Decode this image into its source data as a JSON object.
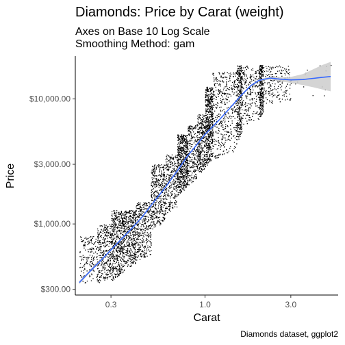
{
  "chart_data": {
    "type": "scatter",
    "title": "Diamonds: Price by Carat (weight)",
    "subtitle_lines": [
      "Axes on Base 10 Log Scale",
      "Smoothing Method: gam"
    ],
    "xlabel": "Carat",
    "ylabel": "Price",
    "caption": "Diamonds dataset, ggplot2",
    "x_scale": "log10",
    "y_scale": "log10",
    "xlim": [
      0.19,
      5.5
    ],
    "ylim": [
      270,
      22000
    ],
    "x_ticks": [
      {
        "value": 0.3,
        "label": "0.3"
      },
      {
        "value": 1.0,
        "label": "1.0"
      },
      {
        "value": 3.0,
        "label": "3.0"
      }
    ],
    "y_ticks": [
      {
        "value": 300,
        "label": "$300.00"
      },
      {
        "value": 1000,
        "label": "$1,000.00"
      },
      {
        "value": 3000,
        "label": "$3,000.00"
      },
      {
        "value": 10000,
        "label": "$10,000.00"
      }
    ],
    "grid": false,
    "point_color": "#000000",
    "smooth_color": "#3366FF",
    "ribbon_color": "#CCCCCC",
    "smooth": [
      {
        "x": 0.2,
        "y": 340,
        "lo": 330,
        "hi": 350
      },
      {
        "x": 0.23,
        "y": 420,
        "lo": 410,
        "hi": 430
      },
      {
        "x": 0.26,
        "y": 500,
        "lo": 490,
        "hi": 510
      },
      {
        "x": 0.3,
        "y": 620,
        "lo": 610,
        "hi": 630
      },
      {
        "x": 0.35,
        "y": 780,
        "lo": 770,
        "hi": 790
      },
      {
        "x": 0.4,
        "y": 950,
        "lo": 940,
        "hi": 960
      },
      {
        "x": 0.45,
        "y": 1150,
        "lo": 1140,
        "hi": 1160
      },
      {
        "x": 0.5,
        "y": 1400,
        "lo": 1390,
        "hi": 1410
      },
      {
        "x": 0.6,
        "y": 1950,
        "lo": 1930,
        "hi": 1970
      },
      {
        "x": 0.7,
        "y": 2650,
        "lo": 2630,
        "hi": 2670
      },
      {
        "x": 0.8,
        "y": 3500,
        "lo": 3470,
        "hi": 3530
      },
      {
        "x": 0.9,
        "y": 4300,
        "lo": 4260,
        "hi": 4340
      },
      {
        "x": 1.0,
        "y": 5200,
        "lo": 5150,
        "hi": 5250
      },
      {
        "x": 1.2,
        "y": 6800,
        "lo": 6730,
        "hi": 6870
      },
      {
        "x": 1.4,
        "y": 8700,
        "lo": 8600,
        "hi": 8800
      },
      {
        "x": 1.6,
        "y": 10800,
        "lo": 10650,
        "hi": 10950
      },
      {
        "x": 1.8,
        "y": 12800,
        "lo": 12600,
        "hi": 13000
      },
      {
        "x": 2.0,
        "y": 14100,
        "lo": 13850,
        "hi": 14350
      },
      {
        "x": 2.3,
        "y": 14700,
        "lo": 14300,
        "hi": 15100
      },
      {
        "x": 2.6,
        "y": 14400,
        "lo": 13900,
        "hi": 14900
      },
      {
        "x": 3.0,
        "y": 14200,
        "lo": 13400,
        "hi": 15000
      },
      {
        "x": 3.5,
        "y": 14300,
        "lo": 12900,
        "hi": 15800
      },
      {
        "x": 4.0,
        "y": 14600,
        "lo": 12400,
        "hi": 17300
      },
      {
        "x": 4.5,
        "y": 14900,
        "lo": 11900,
        "hi": 18700
      },
      {
        "x": 5.0,
        "y": 15100,
        "lo": 11500,
        "hi": 19800
      }
    ],
    "point_clusters": [
      {
        "xmin": 0.2,
        "xmax": 0.25,
        "ymin": 326,
        "ymax": 800,
        "n": 160
      },
      {
        "xmin": 0.25,
        "xmax": 0.3,
        "ymin": 330,
        "ymax": 1000,
        "n": 320
      },
      {
        "xmin": 0.3,
        "xmax": 0.35,
        "ymin": 350,
        "ymax": 1290,
        "n": 480
      },
      {
        "xmin": 0.35,
        "xmax": 0.41,
        "ymin": 420,
        "ymax": 1290,
        "n": 420
      },
      {
        "xmin": 0.41,
        "xmax": 0.5,
        "ymin": 500,
        "ymax": 1500,
        "n": 360
      },
      {
        "xmin": 0.5,
        "xmax": 0.6,
        "ymin": 900,
        "ymax": 3000,
        "n": 420
      },
      {
        "xmin": 0.6,
        "xmax": 0.7,
        "ymin": 1200,
        "ymax": 3600,
        "n": 260
      },
      {
        "xmin": 0.7,
        "xmax": 0.8,
        "ymin": 1700,
        "ymax": 5200,
        "n": 560
      },
      {
        "xmin": 0.8,
        "xmax": 0.9,
        "ymin": 2000,
        "ymax": 6200,
        "n": 200
      },
      {
        "xmin": 0.9,
        "xmax": 1.0,
        "ymin": 2400,
        "ymax": 7600,
        "n": 300
      },
      {
        "xmin": 1.0,
        "xmax": 1.1,
        "ymin": 2800,
        "ymax": 12500,
        "n": 520
      },
      {
        "xmin": 1.1,
        "xmax": 1.5,
        "ymin": 3200,
        "ymax": 16500,
        "n": 420
      },
      {
        "xmin": 1.5,
        "xmax": 1.6,
        "ymin": 4500,
        "ymax": 18800,
        "n": 300
      },
      {
        "xmin": 1.6,
        "xmax": 2.0,
        "ymin": 6000,
        "ymax": 18800,
        "n": 220
      },
      {
        "xmin": 2.0,
        "xmax": 2.1,
        "ymin": 7000,
        "ymax": 18800,
        "n": 260
      },
      {
        "xmin": 2.1,
        "xmax": 3.0,
        "ymin": 9000,
        "ymax": 18800,
        "n": 180
      },
      {
        "xmin": 3.0,
        "xmax": 5.0,
        "ymin": 10000,
        "ymax": 18800,
        "n": 14
      }
    ]
  }
}
